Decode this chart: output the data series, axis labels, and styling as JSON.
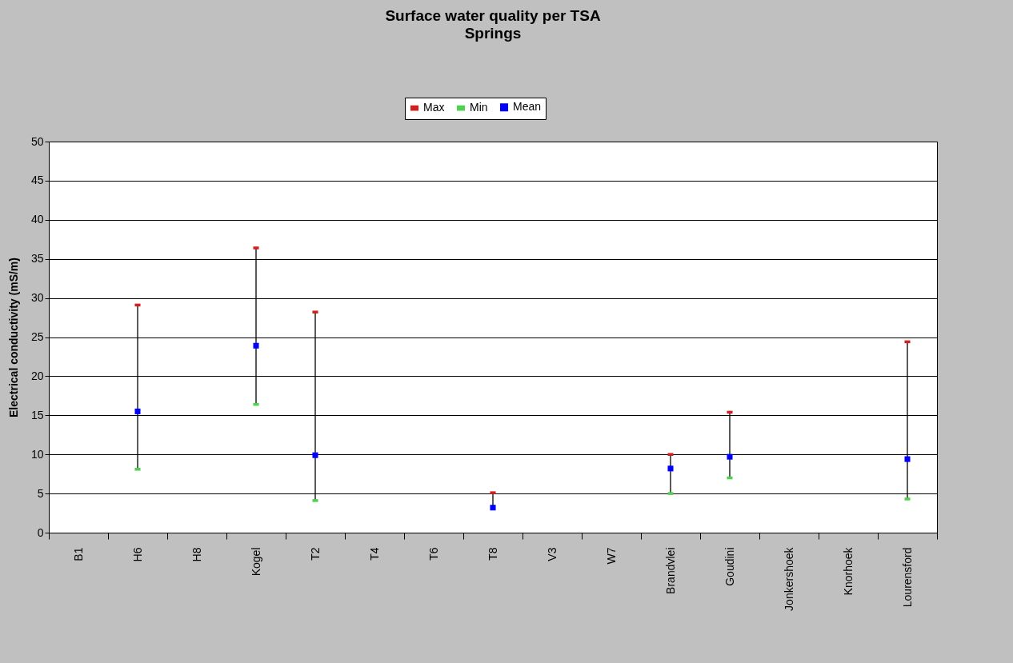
{
  "chart_data": {
    "type": "scatter",
    "title": "Surface water quality per TSA",
    "subtitle": "Springs",
    "ylabel": "Electrical conductivity (mS/m)",
    "categories": [
      "B1",
      "H6",
      "H8",
      "Kogel",
      "T2",
      "T4",
      "T6",
      "T8",
      "V3",
      "W7",
      "Brandvlei",
      "Goudini",
      "Jonkershoek",
      "Knorhoek",
      "Lourensford"
    ],
    "series": [
      {
        "name": "Max",
        "color": "#d02020",
        "values": [
          null,
          29.1,
          null,
          36.4,
          28.2,
          null,
          null,
          5.1,
          null,
          null,
          10.0,
          15.4,
          null,
          null,
          24.4
        ]
      },
      {
        "name": "Min",
        "color": "#50d050",
        "values": [
          null,
          8.1,
          null,
          16.4,
          4.1,
          null,
          null,
          null,
          null,
          null,
          5.0,
          7.0,
          null,
          null,
          4.3
        ]
      },
      {
        "name": "Mean",
        "color": "#0000ff",
        "marker": "square",
        "values": [
          null,
          15.5,
          null,
          23.9,
          9.9,
          null,
          null,
          3.2,
          null,
          null,
          8.2,
          9.7,
          null,
          null,
          9.4
        ]
      }
    ],
    "ylim": [
      0,
      50
    ],
    "yticks": [
      0,
      5,
      10,
      15,
      20,
      25,
      30,
      35,
      40,
      45,
      50
    ],
    "grid": "y",
    "legend": "top"
  }
}
